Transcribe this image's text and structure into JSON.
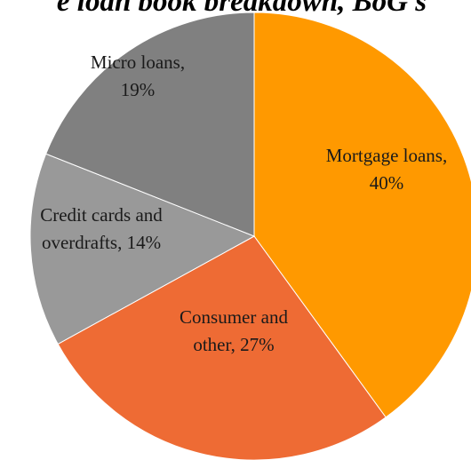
{
  "chart_data": {
    "type": "pie",
    "title": "e loan book breakdown, BoG s",
    "start_angle_deg": 0,
    "direction": "clockwise",
    "slices": [
      {
        "label_lines": [
          "Mortgage loans,",
          "40%"
        ],
        "value": 40,
        "color": "#FF9900"
      },
      {
        "label_lines": [
          "Consumer and",
          "other, 27%"
        ],
        "value": 27,
        "color": "#EE6B34"
      },
      {
        "label_lines": [
          "Credit cards and",
          "overdrafts, 14%"
        ],
        "value": 14,
        "color": "#999999"
      },
      {
        "label_lines": [
          "Micro loans,",
          "19%"
        ],
        "value": 19,
        "color": "#808080"
      }
    ]
  }
}
